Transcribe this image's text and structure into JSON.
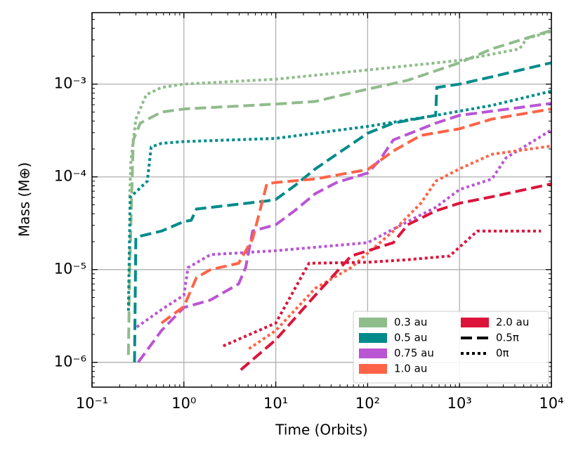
{
  "chart_data": {
    "type": "line",
    "x_label": "Time (Orbits)",
    "y_label": "Mass (M⊕)",
    "xscale": "log",
    "yscale": "log",
    "grid": true,
    "xlim": [
      0.1,
      10000
    ],
    "ylim": [
      5.4e-07,
      0.0059
    ],
    "xticks": [
      {
        "value": 0.1,
        "label": "10⁻¹"
      },
      {
        "value": 1,
        "label": "10⁰"
      },
      {
        "value": 10,
        "label": "10¹"
      },
      {
        "value": 100,
        "label": "10²"
      },
      {
        "value": 1000,
        "label": "10³"
      },
      {
        "value": 10000,
        "label": "10⁴"
      }
    ],
    "yticks": [
      {
        "value": 1e-06,
        "label": "10⁻⁶"
      },
      {
        "value": 1e-05,
        "label": "10⁻⁵"
      },
      {
        "value": 0.0001,
        "label": "10⁻⁴"
      },
      {
        "value": 0.001,
        "label": "10⁻³"
      }
    ],
    "series": [
      {
        "color": "#8fbc8b",
        "linestyle": "dashed",
        "x": [
          0.249,
          0.257,
          0.281,
          0.336,
          0.57,
          1,
          10,
          27,
          80,
          273,
          1000,
          2250,
          10000
        ],
        "values": [
          1.2e-06,
          1e-05,
          0.00025,
          0.00038,
          0.0005,
          0.00054,
          0.00061,
          0.00065,
          0.00084,
          0.0011,
          0.0017,
          0.0024,
          0.0038
        ]
      },
      {
        "color": "#8fbc8b",
        "linestyle": "dotted",
        "x": [
          0.257,
          0.265,
          0.3,
          0.39,
          0.57,
          1,
          10,
          100,
          1000,
          4500,
          5400,
          10000
        ],
        "values": [
          6e-05,
          0.00015,
          0.00042,
          0.00077,
          0.00092,
          0.001,
          0.00113,
          0.00142,
          0.0018,
          0.0024,
          0.0031,
          0.0037
        ]
      },
      {
        "color": "#008b8b",
        "linestyle": "dashed",
        "x": [
          0.29,
          0.3,
          0.336,
          0.57,
          1,
          1.2,
          1.37,
          8,
          10,
          16,
          27,
          46,
          100,
          190,
          550,
          566,
          1000,
          2250,
          10000
        ],
        "values": [
          1e-06,
          2.2e-05,
          2.3e-05,
          2.6e-05,
          3.3e-05,
          3.4e-05,
          4.5e-05,
          5.5e-05,
          5.7e-05,
          8e-05,
          0.000122,
          0.000175,
          0.000295,
          0.00038,
          0.00046,
          0.00092,
          0.001,
          0.0012,
          0.0017
        ]
      },
      {
        "color": "#008b8b",
        "linestyle": "dotted",
        "x": [
          0.249,
          0.26,
          0.4,
          0.44,
          0.57,
          1,
          10,
          100,
          550,
          2250,
          10000
        ],
        "values": [
          3.6e-06,
          6e-05,
          9e-05,
          0.00021,
          0.00023,
          0.00024,
          0.00026,
          0.00035,
          0.00046,
          0.00059,
          0.00084
        ]
      },
      {
        "color": "#ba55d3",
        "linestyle": "dashed",
        "x": [
          0.318,
          0.57,
          1,
          1.95,
          3.94,
          4.7,
          5.6,
          10,
          16,
          27,
          46,
          100,
          134,
          190,
          553,
          1000,
          10000
        ],
        "values": [
          1e-06,
          2.2e-06,
          3.9e-06,
          4.7e-06,
          7e-06,
          1.05e-05,
          2.6e-05,
          3.05e-05,
          4.3e-05,
          6.6e-05,
          8.7e-05,
          0.00011,
          0.00015,
          0.00025,
          0.00038,
          0.00046,
          0.00062
        ]
      },
      {
        "color": "#ba55d3",
        "linestyle": "dotted",
        "x": [
          0.307,
          0.57,
          1,
          1.11,
          1.95,
          10,
          100,
          273,
          553,
          1000,
          2250,
          3200,
          10000
        ],
        "values": [
          2.4e-06,
          3.7e-06,
          5.3e-06,
          1.05e-05,
          1.45e-05,
          1.6e-05,
          1.95e-05,
          3.3e-05,
          4.7e-05,
          7.3e-05,
          9.5e-05,
          0.00016,
          0.00032
        ]
      },
      {
        "color": "#ff6347",
        "linestyle": "dashed",
        "x": [
          0.57,
          1,
          1.37,
          1.95,
          3.94,
          5.6,
          8,
          10,
          27,
          100,
          190,
          380,
          1000,
          2250,
          10000
        ],
        "values": [
          2.65e-06,
          4e-06,
          8.2e-06,
          1e-05,
          1.17e-05,
          2.15e-05,
          8.4e-05,
          8.7e-05,
          9.5e-05,
          0.00012,
          0.00019,
          0.00028,
          0.00033,
          0.00042,
          0.00054
        ]
      },
      {
        "color": "#ff6347",
        "linestyle": "dotted",
        "x": [
          5.1,
          10,
          27,
          66,
          190,
          380,
          553,
          1000,
          2250,
          10000
        ],
        "values": [
          1.4e-06,
          2.2e-06,
          6.3e-06,
          1.05e-05,
          2.6e-05,
          5.2e-05,
          9e-05,
          0.000122,
          0.000175,
          0.000215
        ]
      },
      {
        "color": "#dc143c",
        "linestyle": "dashed",
        "x": [
          4.16,
          10,
          27,
          66,
          190,
          273,
          553,
          1000,
          2250,
          10000
        ],
        "values": [
          8.3e-07,
          1.75e-06,
          5.3e-06,
          1.4e-05,
          1.95e-05,
          3.05e-05,
          4.3e-05,
          5.2e-05,
          6.1e-05,
          8.4e-05
        ]
      },
      {
        "color": "#dc143c",
        "linestyle": "dotted",
        "x": [
          2.68,
          10,
          23,
          100,
          273,
          780,
          1560,
          3200,
          7700
        ],
        "values": [
          1.5e-06,
          2.65e-06,
          1.17e-05,
          1.2e-05,
          1.28e-05,
          1.4e-05,
          2.6e-05,
          2.6e-05,
          2.6e-05
        ]
      }
    ],
    "legend": {
      "loc": "lower right",
      "ncol": 2,
      "entries": [
        {
          "label": "0.3 au",
          "color": "#8fbc8b"
        },
        {
          "label": "0.5 au",
          "color": "#008b8b"
        },
        {
          "label": "0.75 au",
          "color": "#ba55d3"
        },
        {
          "label": "1.0 au",
          "color": "#ff6347"
        },
        {
          "label": "2.0 au",
          "color": "#dc143c"
        },
        {
          "label": "0.5π",
          "linestyle": "dashed"
        },
        {
          "label": "0π",
          "linestyle": "dotted"
        }
      ]
    }
  }
}
